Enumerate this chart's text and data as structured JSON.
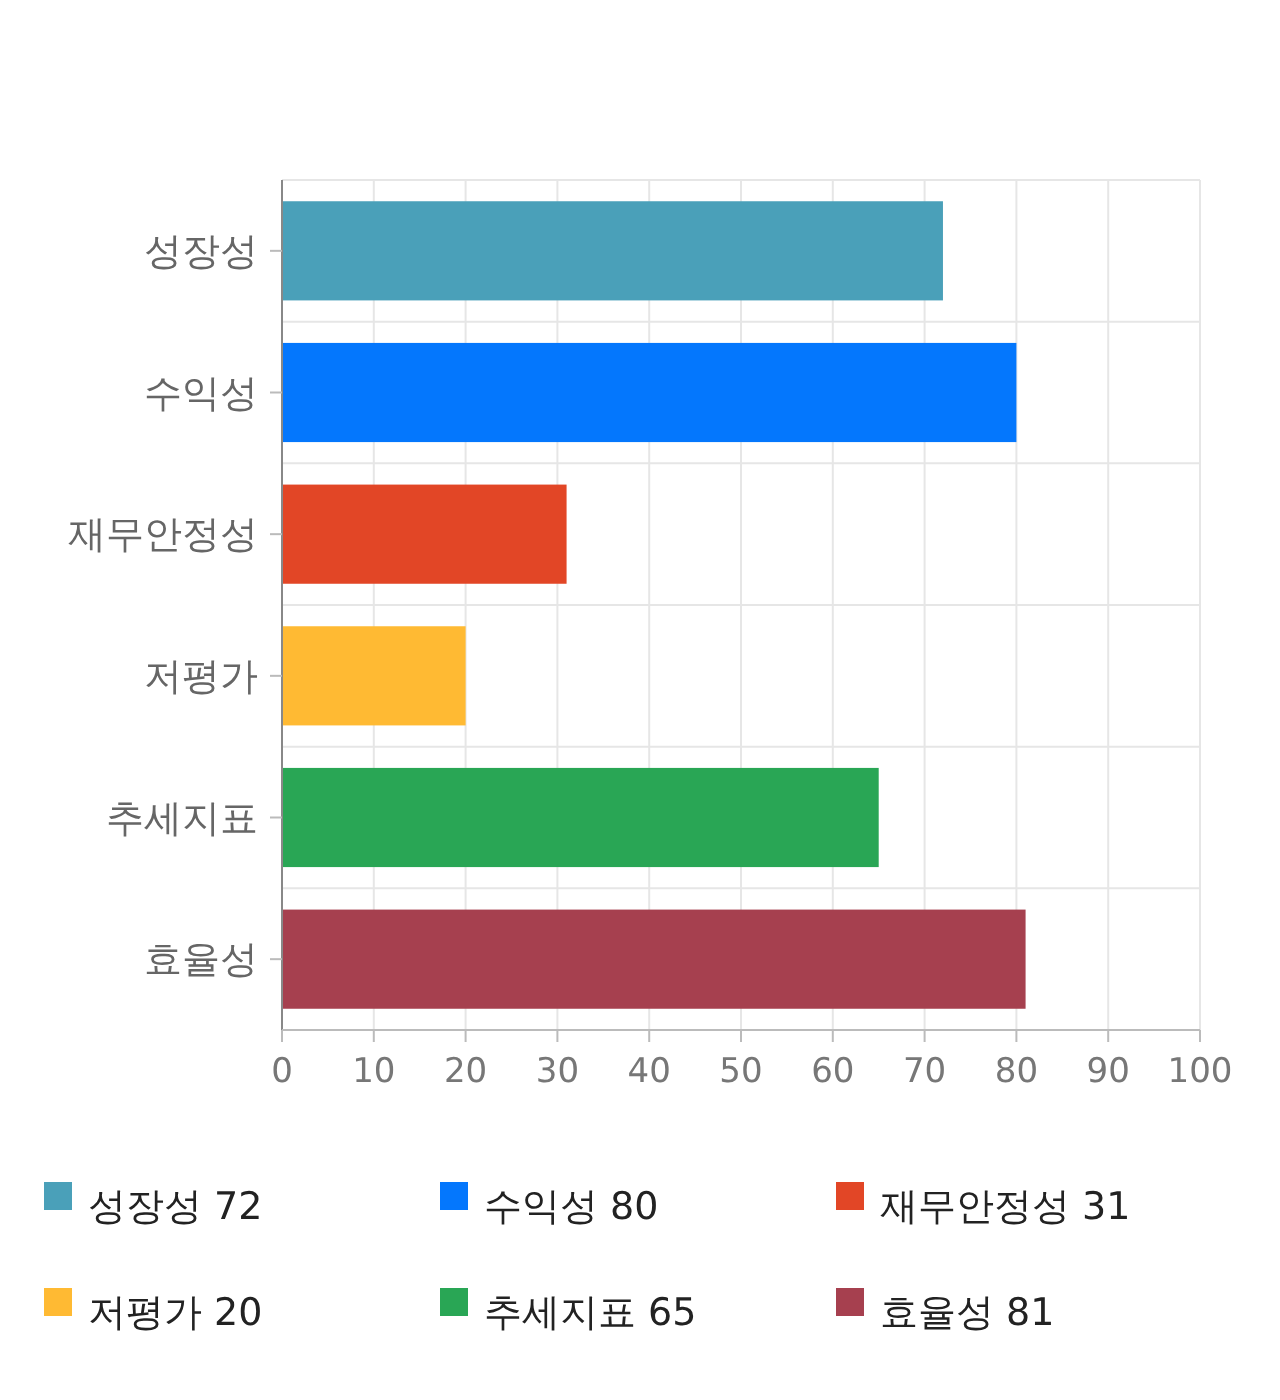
{
  "chart_data": {
    "type": "bar",
    "orientation": "horizontal",
    "categories": [
      "성장성",
      "수익성",
      "재무안정성",
      "저평가",
      "추세지표",
      "효율성"
    ],
    "series": [
      {
        "name": "성장성 72",
        "color": "#4aa0b9",
        "values": [
          72,
          null,
          null,
          null,
          null,
          null
        ]
      },
      {
        "name": "수익성 80",
        "color": "#0477fd",
        "values": [
          null,
          80,
          null,
          null,
          null,
          null
        ]
      },
      {
        "name": "재무안정성 31",
        "color": "#e24626",
        "values": [
          null,
          null,
          31,
          null,
          null,
          null
        ]
      },
      {
        "name": "저평가 20",
        "color": "#ffba33",
        "values": [
          null,
          null,
          null,
          20,
          null,
          null
        ]
      },
      {
        "name": "추세지표 65",
        "color": "#29a655",
        "values": [
          null,
          null,
          null,
          null,
          65,
          null
        ]
      },
      {
        "name": "효율성 81",
        "color": "#a6404f",
        "values": [
          null,
          null,
          null,
          null,
          null,
          81
        ]
      }
    ],
    "xlim": [
      0,
      100
    ],
    "xticks": [
      0,
      10,
      20,
      30,
      40,
      50,
      60,
      70,
      80,
      90,
      100
    ],
    "grid": true,
    "legend": "bottom"
  }
}
